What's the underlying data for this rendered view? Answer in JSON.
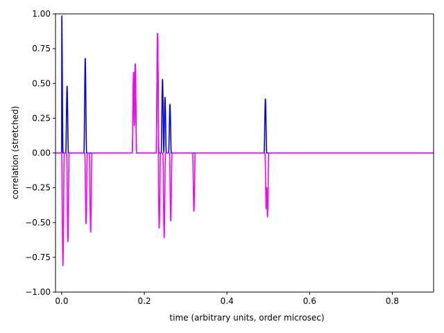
{
  "chart_data": {
    "type": "line",
    "title": "",
    "xlabel": "time (arbitrary units, order microsec)",
    "ylabel": "correlation (stretched)",
    "xlim": [
      -0.015,
      0.9
    ],
    "ylim": [
      -1.0,
      1.0
    ],
    "xticks": [
      0.0,
      0.2,
      0.4,
      0.6,
      0.8
    ],
    "xtick_labels": [
      "0.0",
      "0.2",
      "0.4",
      "0.6",
      "0.8"
    ],
    "yticks": [
      -1.0,
      -0.75,
      -0.5,
      -0.25,
      0.0,
      0.25,
      0.5,
      0.75,
      1.0
    ],
    "ytick_labels": [
      "−1.00",
      "−0.75",
      "−0.50",
      "−0.25",
      "0.00",
      "0.25",
      "0.50",
      "0.75",
      "1.00"
    ],
    "grid": false,
    "legend": "none",
    "series": [
      {
        "color": "#0000ff",
        "peaks": [
          {
            "t": 0.0,
            "v": 1.0
          },
          {
            "t": 0.013,
            "v": 0.48
          },
          {
            "t": 0.057,
            "v": 0.68
          },
          {
            "t": 0.174,
            "v": 0.58
          },
          {
            "t": 0.178,
            "v": 0.64
          },
          {
            "t": 0.232,
            "v": 0.86
          },
          {
            "t": 0.244,
            "v": 0.53
          },
          {
            "t": 0.25,
            "v": 0.4
          },
          {
            "t": 0.262,
            "v": 0.35
          },
          {
            "t": 0.493,
            "v": 0.39
          }
        ]
      },
      {
        "color": "#ff00ff",
        "peaks": [
          {
            "t": 0.003,
            "v": -0.81
          },
          {
            "t": 0.015,
            "v": -0.64
          },
          {
            "t": 0.059,
            "v": -0.51
          },
          {
            "t": 0.07,
            "v": -0.57
          },
          {
            "t": 0.174,
            "v": 0.58
          },
          {
            "t": 0.178,
            "v": 0.64
          },
          {
            "t": 0.232,
            "v": 0.86
          },
          {
            "t": 0.236,
            "v": -0.54
          },
          {
            "t": 0.248,
            "v": -0.61
          },
          {
            "t": 0.264,
            "v": -0.49
          },
          {
            "t": 0.32,
            "v": -0.42
          },
          {
            "t": 0.495,
            "v": -0.4
          },
          {
            "t": 0.498,
            "v": -0.46
          }
        ]
      }
    ]
  }
}
